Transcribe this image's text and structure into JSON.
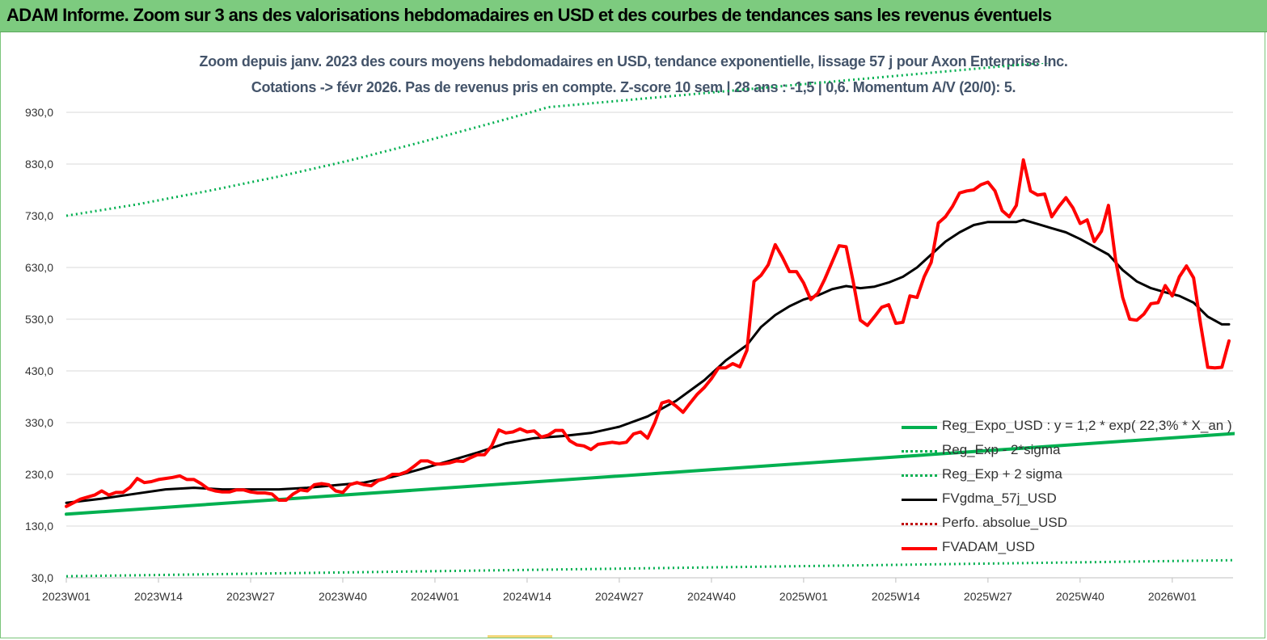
{
  "banner": {
    "title": "ADAM Informe. Zoom sur 3 ans des valorisations hebdomadaires en USD et des courbes de tendances sans les revenus éventuels"
  },
  "chart_data": {
    "type": "line",
    "title_line1": "Zoom depuis janv. 2023 des cours moyens hebdomadaires en USD, tendance exponentielle, lissage 57 j pour Axon Enterprise Inc.",
    "title_line2": "Cotations -> févr 2026.  Pas de revenus pris en compte. Z-score 10 sem  | 28 ans : -1,5  | 0,6. Momentum A/V (20/0): 5.",
    "xlabel": "",
    "ylabel": "",
    "ylim": [
      30,
      1030
    ],
    "yticks": [
      "30,0",
      "130,0",
      "230,0",
      "330,0",
      "430,0",
      "530,0",
      "630,0",
      "730,0",
      "830,0",
      "930,0"
    ],
    "yvalues": [
      30,
      130,
      230,
      330,
      430,
      530,
      630,
      730,
      830,
      930
    ],
    "xticks": [
      "2023W01",
      "2023W14",
      "2023W27",
      "2023W40",
      "2024W01",
      "2024W14",
      "2024W27",
      "2024W40",
      "2025W01",
      "2025W14",
      "2025W27",
      "2025W40",
      "2026W01"
    ],
    "xtick_index": [
      0,
      13,
      26,
      39,
      52,
      65,
      78,
      91,
      104,
      117,
      130,
      143,
      156
    ],
    "n_weeks": 165,
    "grid": "horizontal",
    "legend_placement": "bottom-right",
    "colors": {
      "reg": "#00b050",
      "fv": "#000000",
      "adam": "#ff0000",
      "perfo": "#c00000",
      "axis_text": "#333333",
      "grid": "#d9d9d9"
    },
    "series": [
      {
        "name": "Reg_Expo_USD : y = 1,2  * exp( 22,3% *  X_an )",
        "style": "solid-thick",
        "color": "#00b050",
        "points": [
          [
            0,
            153
          ],
          [
            165,
            309
          ]
        ]
      },
      {
        "name": "Reg_Exp - 2*sigma",
        "style": "dotted",
        "color": "#00b050",
        "points": [
          [
            0,
            33
          ],
          [
            165,
            64
          ]
        ]
      },
      {
        "name": "Reg_Exp + 2 sigma",
        "style": "dotted",
        "color": "#00b050",
        "points": [
          [
            0,
            730
          ],
          [
            10,
            752
          ],
          [
            20,
            778
          ],
          [
            30,
            806
          ],
          [
            40,
            837
          ],
          [
            50,
            872
          ],
          [
            60,
            909
          ],
          [
            65,
            928
          ],
          [
            68,
            940
          ],
          [
            141,
            1030
          ],
          [
            165,
            1030
          ]
        ]
      },
      {
        "name": "FVgdma_57j_USD",
        "style": "solid",
        "color": "#000000",
        "points": [
          [
            0,
            175
          ],
          [
            5,
            183
          ],
          [
            10,
            193
          ],
          [
            14,
            201
          ],
          [
            18,
            204
          ],
          [
            22,
            201
          ],
          [
            26,
            201
          ],
          [
            30,
            201
          ],
          [
            34,
            204
          ],
          [
            38,
            209
          ],
          [
            42,
            214
          ],
          [
            46,
            225
          ],
          [
            50,
            240
          ],
          [
            54,
            256
          ],
          [
            58,
            272
          ],
          [
            62,
            290
          ],
          [
            66,
            300
          ],
          [
            70,
            304
          ],
          [
            74,
            310
          ],
          [
            78,
            322
          ],
          [
            82,
            342
          ],
          [
            86,
            372
          ],
          [
            90,
            412
          ],
          [
            93,
            450
          ],
          [
            96,
            480
          ],
          [
            98,
            515
          ],
          [
            100,
            538
          ],
          [
            102,
            555
          ],
          [
            104,
            568
          ],
          [
            106,
            576
          ],
          [
            108,
            588
          ],
          [
            110,
            594
          ],
          [
            112,
            590
          ],
          [
            114,
            593
          ],
          [
            116,
            601
          ],
          [
            118,
            612
          ],
          [
            120,
            630
          ],
          [
            122,
            655
          ],
          [
            124,
            680
          ],
          [
            126,
            698
          ],
          [
            128,
            712
          ],
          [
            130,
            718
          ],
          [
            132,
            718
          ],
          [
            134,
            718
          ],
          [
            135,
            722
          ],
          [
            137,
            714
          ],
          [
            139,
            706
          ],
          [
            141,
            698
          ],
          [
            143,
            685
          ],
          [
            145,
            670
          ],
          [
            147,
            655
          ],
          [
            149,
            625
          ],
          [
            151,
            603
          ],
          [
            153,
            590
          ],
          [
            155,
            582
          ],
          [
            157,
            575
          ],
          [
            159,
            562
          ],
          [
            161,
            535
          ],
          [
            163,
            520
          ],
          [
            164,
            520
          ]
        ]
      },
      {
        "name": "Perfo. absolue_USD",
        "style": "dotted",
        "color": "#c00000",
        "points": []
      },
      {
        "name": "FVADAM_USD",
        "style": "solid-thick",
        "color": "#ff0000",
        "points": [
          [
            0,
            168
          ],
          [
            2,
            182
          ],
          [
            4,
            190
          ],
          [
            5,
            198
          ],
          [
            6,
            190
          ],
          [
            7,
            195
          ],
          [
            8,
            195
          ],
          [
            9,
            205
          ],
          [
            10,
            222
          ],
          [
            11,
            214
          ],
          [
            12,
            216
          ],
          [
            13,
            220
          ],
          [
            14,
            222
          ],
          [
            15,
            224
          ],
          [
            16,
            227
          ],
          [
            17,
            220
          ],
          [
            18,
            220
          ],
          [
            19,
            212
          ],
          [
            20,
            202
          ],
          [
            21,
            198
          ],
          [
            22,
            196
          ],
          [
            23,
            196
          ],
          [
            24,
            200
          ],
          [
            25,
            200
          ],
          [
            26,
            196
          ],
          [
            27,
            194
          ],
          [
            28,
            194
          ],
          [
            29,
            192
          ],
          [
            30,
            180
          ],
          [
            31,
            180
          ],
          [
            32,
            192
          ],
          [
            33,
            200
          ],
          [
            34,
            198
          ],
          [
            35,
            210
          ],
          [
            36,
            212
          ],
          [
            37,
            210
          ],
          [
            38,
            198
          ],
          [
            39,
            195
          ],
          [
            40,
            210
          ],
          [
            41,
            214
          ],
          [
            42,
            210
          ],
          [
            43,
            208
          ],
          [
            44,
            218
          ],
          [
            45,
            222
          ],
          [
            46,
            230
          ],
          [
            47,
            230
          ],
          [
            48,
            235
          ],
          [
            49,
            245
          ],
          [
            50,
            256
          ],
          [
            51,
            256
          ],
          [
            52,
            250
          ],
          [
            53,
            250
          ],
          [
            54,
            252
          ],
          [
            55,
            256
          ],
          [
            56,
            255
          ],
          [
            57,
            262
          ],
          [
            58,
            268
          ],
          [
            59,
            268
          ],
          [
            60,
            285
          ],
          [
            61,
            316
          ],
          [
            62,
            310
          ],
          [
            63,
            312
          ],
          [
            64,
            318
          ],
          [
            65,
            312
          ],
          [
            66,
            314
          ],
          [
            67,
            302
          ],
          [
            68,
            306
          ],
          [
            69,
            315
          ],
          [
            70,
            315
          ],
          [
            71,
            295
          ],
          [
            72,
            287
          ],
          [
            73,
            285
          ],
          [
            74,
            278
          ],
          [
            75,
            288
          ],
          [
            76,
            290
          ],
          [
            77,
            292
          ],
          [
            78,
            290
          ],
          [
            79,
            292
          ],
          [
            80,
            308
          ],
          [
            81,
            312
          ],
          [
            82,
            300
          ],
          [
            83,
            330
          ],
          [
            84,
            368
          ],
          [
            85,
            372
          ],
          [
            86,
            362
          ],
          [
            87,
            350
          ],
          [
            88,
            368
          ],
          [
            89,
            385
          ],
          [
            90,
            398
          ],
          [
            91,
            415
          ],
          [
            92,
            436
          ],
          [
            93,
            436
          ],
          [
            94,
            444
          ],
          [
            95,
            438
          ],
          [
            96,
            470
          ],
          [
            97,
            603
          ],
          [
            98,
            615
          ],
          [
            99,
            635
          ],
          [
            100,
            674
          ],
          [
            101,
            650
          ],
          [
            102,
            622
          ],
          [
            103,
            622
          ],
          [
            104,
            600
          ],
          [
            105,
            568
          ],
          [
            106,
            580
          ],
          [
            107,
            608
          ],
          [
            108,
            640
          ],
          [
            109,
            672
          ],
          [
            110,
            670
          ],
          [
            111,
            602
          ],
          [
            112,
            528
          ],
          [
            113,
            518
          ],
          [
            114,
            535
          ],
          [
            115,
            553
          ],
          [
            116,
            558
          ],
          [
            117,
            522
          ],
          [
            118,
            524
          ],
          [
            119,
            575
          ],
          [
            120,
            572
          ],
          [
            121,
            612
          ],
          [
            122,
            640
          ],
          [
            123,
            716
          ],
          [
            124,
            728
          ],
          [
            125,
            748
          ],
          [
            126,
            774
          ],
          [
            127,
            778
          ],
          [
            128,
            780
          ],
          [
            129,
            790
          ],
          [
            130,
            795
          ],
          [
            131,
            778
          ],
          [
            132,
            740
          ],
          [
            133,
            728
          ],
          [
            134,
            750
          ],
          [
            135,
            838
          ],
          [
            136,
            778
          ],
          [
            137,
            770
          ],
          [
            138,
            772
          ],
          [
            139,
            728
          ],
          [
            140,
            748
          ],
          [
            141,
            765
          ],
          [
            142,
            745
          ],
          [
            143,
            715
          ],
          [
            144,
            722
          ],
          [
            145,
            680
          ],
          [
            146,
            700
          ],
          [
            147,
            750
          ],
          [
            148,
            645
          ],
          [
            149,
            572
          ],
          [
            150,
            530
          ],
          [
            151,
            528
          ],
          [
            152,
            540
          ],
          [
            153,
            560
          ],
          [
            154,
            562
          ],
          [
            155,
            595
          ],
          [
            156,
            575
          ],
          [
            157,
            612
          ],
          [
            158,
            633
          ],
          [
            159,
            610
          ],
          [
            160,
            520
          ],
          [
            161,
            437
          ],
          [
            162,
            436
          ],
          [
            163,
            437
          ],
          [
            164,
            488
          ]
        ]
      }
    ]
  }
}
